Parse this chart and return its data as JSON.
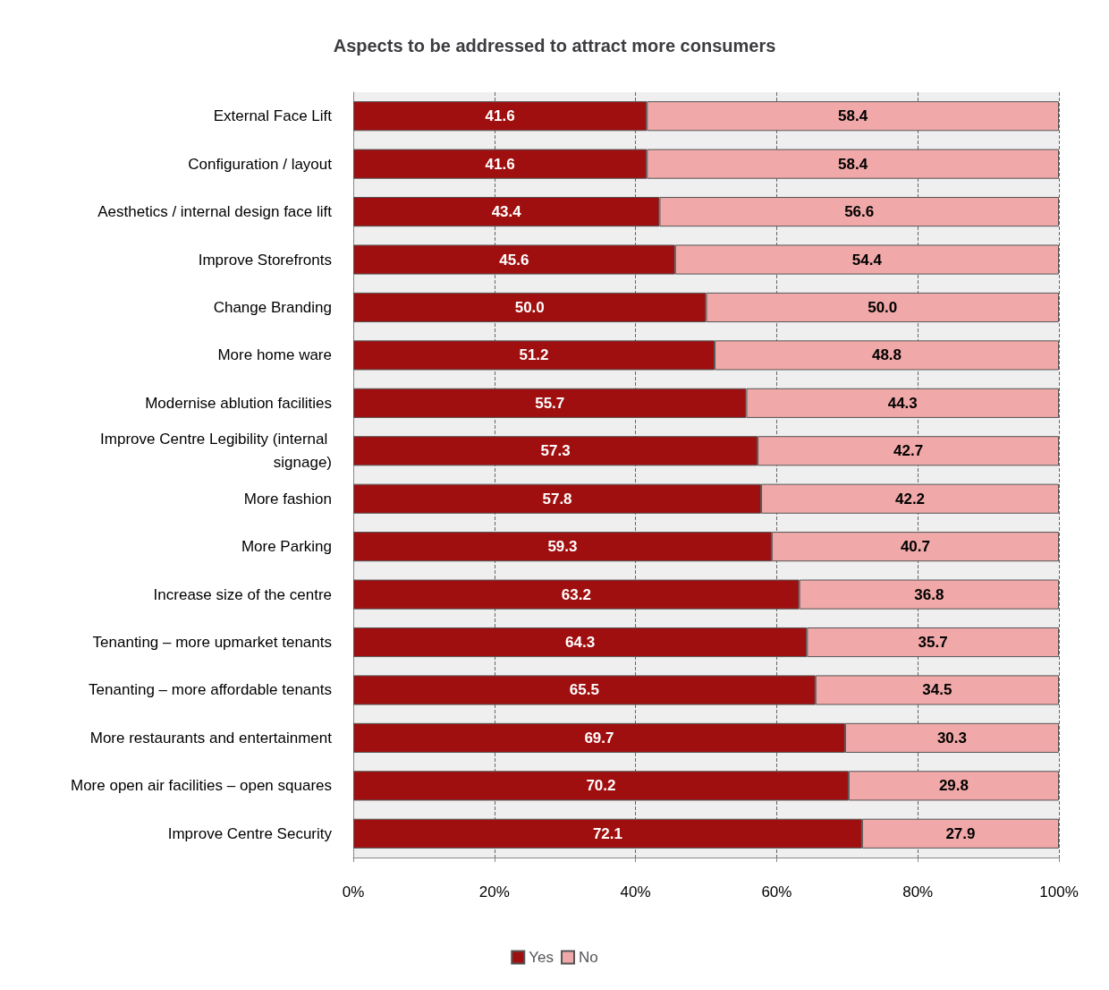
{
  "chart_data": {
    "type": "bar",
    "orientation": "horizontal",
    "stacked": true,
    "title": "Aspects to be addressed to attract more consumers",
    "categories": [
      "External Face Lift",
      "Configuration / layout",
      "Aesthetics / internal design face lift",
      "Improve Storefronts",
      "Change Branding",
      "More home ware",
      "Modernise ablution facilities",
      "Improve Centre Legibility (internal signage)",
      "More fashion",
      "More Parking",
      "Increase size of the centre",
      "Tenanting – more upmarket tenants",
      "Tenanting – more affordable tenants",
      "More restaurants and entertainment",
      "More open air facilities – open squares",
      "Improve Centre Security"
    ],
    "series": [
      {
        "name": "Yes",
        "color": "#a00f0f",
        "values": [
          41.6,
          41.6,
          43.4,
          45.6,
          50.0,
          51.2,
          55.7,
          57.3,
          57.8,
          59.3,
          63.2,
          64.3,
          65.5,
          69.7,
          70.2,
          72.1
        ],
        "value_labels": [
          "41.6",
          "41.6",
          "43.4",
          "45.6",
          "50.0",
          "51.2",
          "55.7",
          "57.3",
          "57.8",
          "59.3",
          "63.2",
          "64.3",
          "65.5",
          "69.7",
          "70.2",
          "72.1"
        ]
      },
      {
        "name": "No",
        "color": "#f0a8a8",
        "values": [
          58.4,
          58.4,
          56.6,
          54.4,
          50.0,
          48.8,
          44.3,
          42.7,
          42.2,
          40.7,
          36.8,
          35.7,
          34.5,
          30.3,
          29.8,
          27.9
        ],
        "value_labels": [
          "58.4",
          "58.4",
          "56.6",
          "54.4",
          "50.0",
          "48.8",
          "44.3",
          "42.7",
          "42.2",
          "40.7",
          "36.8",
          "35.7",
          "34.5",
          "30.3",
          "29.8",
          "27.9"
        ]
      }
    ],
    "xlim": [
      0,
      100
    ],
    "xticks": [
      {
        "value": 0,
        "label": "0%"
      },
      {
        "value": 20,
        "label": "20%"
      },
      {
        "value": 40,
        "label": "40%"
      },
      {
        "value": 60,
        "label": "60%"
      },
      {
        "value": 80,
        "label": "80%"
      },
      {
        "value": 100,
        "label": "100%"
      }
    ],
    "grid": "x",
    "legend": "bottom"
  }
}
